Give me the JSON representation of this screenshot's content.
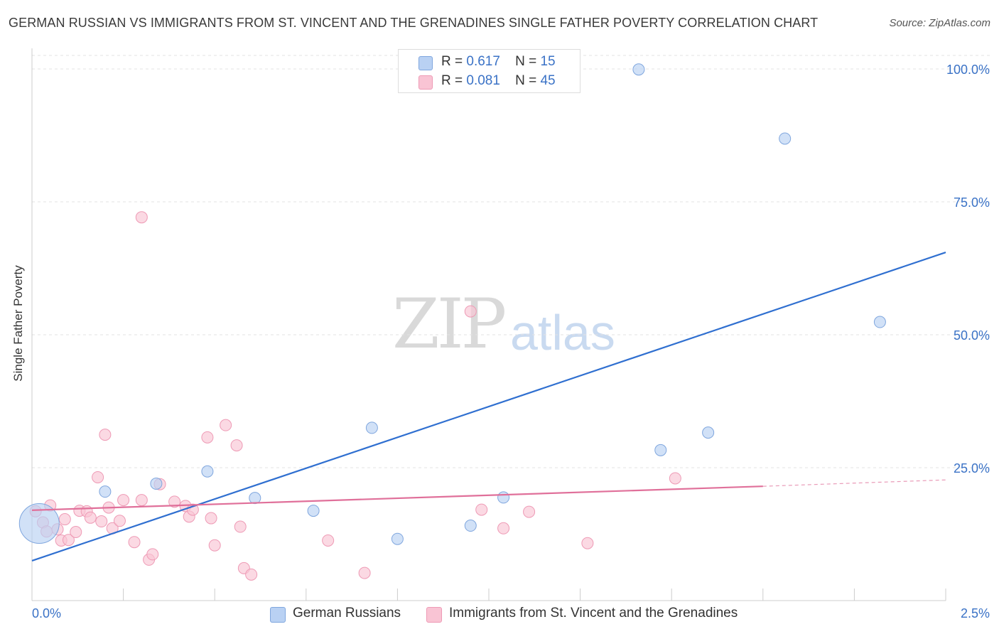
{
  "title": "GERMAN RUSSIAN VS IMMIGRANTS FROM ST. VINCENT AND THE GRENADINES SINGLE FATHER POVERTY CORRELATION CHART",
  "source": "Source: ZipAtlas.com",
  "watermark": {
    "zip": "ZIP",
    "atlas": "atlas"
  },
  "legend_top": [
    {
      "r_label": "R =",
      "r_value": "0.617",
      "n_label": "N =",
      "n_value": "15"
    },
    {
      "r_label": "R =",
      "r_value": "0.081",
      "n_label": "N =",
      "n_value": "45"
    }
  ],
  "colors": {
    "blue_fill": "#b9d1f3",
    "blue_stroke": "#7fa6de",
    "blue_line": "#2f6fd0",
    "pink_fill": "#f9c4d4",
    "pink_stroke": "#ee9ab5",
    "pink_line": "#e0709a",
    "axis_text": "#3a72c6"
  },
  "chart_data": {
    "type": "scatter",
    "title": "GERMAN RUSSIAN VS IMMIGRANTS FROM ST. VINCENT AND THE GRENADINES SINGLE FATHER POVERTY CORRELATION CHART",
    "xlabel": "",
    "ylabel": "Single Father Poverty",
    "xlim": [
      0,
      2.5
    ],
    "ylim": [
      0,
      102
    ],
    "x_tick_labels": [
      "0.0%",
      "2.5%"
    ],
    "y_tick_labels": [
      "25.0%",
      "50.0%",
      "75.0%",
      "100.0%"
    ],
    "y_ticks": [
      25,
      50,
      75,
      100
    ],
    "grid": true,
    "legend_position": "bottom",
    "series": [
      {
        "name": "German Russians",
        "points": [
          [
            0.02,
            14.5,
            3.5
          ],
          [
            0.2,
            20.5,
            1
          ],
          [
            0.34,
            22.0,
            1
          ],
          [
            0.48,
            24.3,
            1
          ],
          [
            0.61,
            19.3,
            1
          ],
          [
            0.77,
            16.9,
            1
          ],
          [
            0.93,
            32.5,
            1
          ],
          [
            1.0,
            11.6,
            1
          ],
          [
            1.2,
            14.1,
            1
          ],
          [
            1.29,
            19.4,
            1
          ],
          [
            1.66,
            99.9,
            1
          ],
          [
            1.72,
            28.3,
            1
          ],
          [
            1.85,
            31.6,
            1
          ],
          [
            2.06,
            86.9,
            1
          ],
          [
            2.32,
            52.4,
            1
          ]
        ],
        "trend": {
          "x": [
            0.0,
            2.5
          ],
          "y": [
            7.5,
            65.5
          ]
        }
      },
      {
        "name": "Immigrants from St. Vincent and the Grenadines",
        "points": [
          [
            0.01,
            16.8,
            1
          ],
          [
            0.03,
            14.7,
            1
          ],
          [
            0.04,
            13.0,
            1
          ],
          [
            0.05,
            17.9,
            1
          ],
          [
            0.07,
            13.4,
            1
          ],
          [
            0.08,
            11.3,
            1
          ],
          [
            0.09,
            15.3,
            1
          ],
          [
            0.1,
            11.4,
            1
          ],
          [
            0.12,
            12.9,
            1
          ],
          [
            0.13,
            16.9,
            1
          ],
          [
            0.15,
            16.8,
            1
          ],
          [
            0.16,
            15.6,
            1
          ],
          [
            0.18,
            23.2,
            1
          ],
          [
            0.19,
            14.9,
            1
          ],
          [
            0.2,
            31.2,
            1
          ],
          [
            0.21,
            17.5,
            1
          ],
          [
            0.22,
            13.6,
            1
          ],
          [
            0.24,
            15.0,
            1
          ],
          [
            0.25,
            18.9,
            1
          ],
          [
            0.28,
            11.0,
            1
          ],
          [
            0.3,
            18.9,
            1
          ],
          [
            0.3,
            72.1,
            1
          ],
          [
            0.32,
            7.7,
            1
          ],
          [
            0.33,
            8.7,
            1
          ],
          [
            0.35,
            21.9,
            1
          ],
          [
            0.39,
            18.6,
            1
          ],
          [
            0.42,
            17.8,
            1
          ],
          [
            0.43,
            15.8,
            1
          ],
          [
            0.44,
            17.1,
            1
          ],
          [
            0.48,
            30.7,
            1
          ],
          [
            0.49,
            15.5,
            1
          ],
          [
            0.5,
            10.4,
            1
          ],
          [
            0.53,
            33.0,
            1
          ],
          [
            0.56,
            29.2,
            1
          ],
          [
            0.57,
            13.9,
            1
          ],
          [
            0.58,
            6.1,
            1
          ],
          [
            0.6,
            4.9,
            1
          ],
          [
            0.81,
            11.3,
            1
          ],
          [
            0.91,
            5.2,
            1
          ],
          [
            1.2,
            54.4,
            1
          ],
          [
            1.23,
            17.1,
            1
          ],
          [
            1.29,
            13.6,
            1
          ],
          [
            1.36,
            16.7,
            1
          ],
          [
            1.52,
            10.8,
            1
          ],
          [
            1.76,
            23.0,
            1
          ]
        ],
        "trend": {
          "x": [
            0.0,
            2.0
          ],
          "y": [
            17.0,
            21.5
          ]
        },
        "trend_dashed": {
          "x": [
            2.0,
            2.5
          ],
          "y": [
            21.5,
            22.7
          ]
        }
      }
    ]
  }
}
